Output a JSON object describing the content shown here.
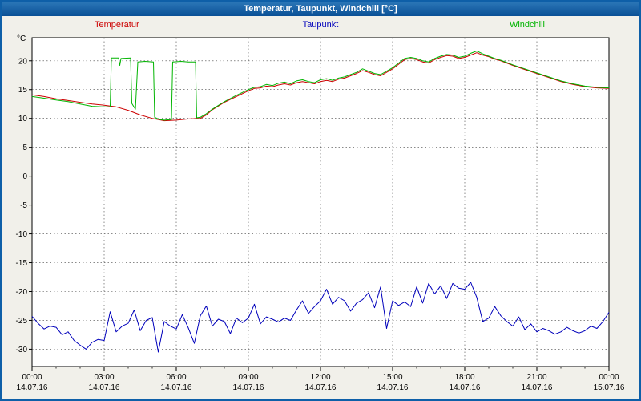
{
  "window": {
    "title": "Temperatur, Taupunkt, Windchill [°C]"
  },
  "chart_data": {
    "type": "line",
    "title": "Temperatur, Taupunkt, Windchill [°C]",
    "ylabel": "°C",
    "ylim": [
      -33,
      24
    ],
    "yticks": [
      20,
      15,
      10,
      5,
      0,
      -5,
      -10,
      -15,
      -20,
      -25,
      -30
    ],
    "xlim": [
      0,
      24
    ],
    "grid": "dashed",
    "legend_position": "top",
    "xticks": [
      {
        "hour": 0,
        "time": "00:00",
        "date": "14.07.16"
      },
      {
        "hour": 3,
        "time": "03:00",
        "date": "14.07.16"
      },
      {
        "hour": 6,
        "time": "06:00",
        "date": "14.07.16"
      },
      {
        "hour": 9,
        "time": "09:00",
        "date": "14.07.16"
      },
      {
        "hour": 12,
        "time": "12:00",
        "date": "14.07.16"
      },
      {
        "hour": 15,
        "time": "15:00",
        "date": "14.07.16"
      },
      {
        "hour": 18,
        "time": "18:00",
        "date": "14.07.16"
      },
      {
        "hour": 21,
        "time": "21:00",
        "date": "14.07.16"
      },
      {
        "hour": 24,
        "time": "00:00",
        "date": "15.07.16"
      }
    ],
    "series": [
      {
        "name": "Temperatur",
        "color": "#cc0000",
        "points": [
          [
            0,
            14.1
          ],
          [
            0.5,
            13.8
          ],
          [
            1,
            13.4
          ],
          [
            1.5,
            13.1
          ],
          [
            2,
            12.8
          ],
          [
            2.5,
            12.5
          ],
          [
            3,
            12.3
          ],
          [
            3.5,
            12.0
          ],
          [
            4,
            11.4
          ],
          [
            4.5,
            10.6
          ],
          [
            5,
            10.0
          ],
          [
            5.25,
            9.8
          ],
          [
            5.5,
            9.6
          ],
          [
            6,
            9.7
          ],
          [
            6.5,
            9.9
          ],
          [
            7,
            10.0
          ],
          [
            7.25,
            10.6
          ],
          [
            7.5,
            11.5
          ],
          [
            8,
            12.8
          ],
          [
            8.5,
            13.8
          ],
          [
            9,
            14.8
          ],
          [
            9.25,
            15.2
          ],
          [
            9.5,
            15.3
          ],
          [
            9.75,
            15.6
          ],
          [
            10,
            15.5
          ],
          [
            10.25,
            15.8
          ],
          [
            10.5,
            16.0
          ],
          [
            10.75,
            15.8
          ],
          [
            11,
            16.2
          ],
          [
            11.25,
            16.4
          ],
          [
            11.5,
            16.2
          ],
          [
            11.75,
            16.0
          ],
          [
            12,
            16.4
          ],
          [
            12.25,
            16.6
          ],
          [
            12.5,
            16.4
          ],
          [
            12.75,
            16.8
          ],
          [
            13,
            17.0
          ],
          [
            13.25,
            17.4
          ],
          [
            13.5,
            17.8
          ],
          [
            13.75,
            18.3
          ],
          [
            14,
            18.0
          ],
          [
            14.25,
            17.6
          ],
          [
            14.5,
            17.4
          ],
          [
            14.75,
            18.0
          ],
          [
            15,
            18.6
          ],
          [
            15.25,
            19.4
          ],
          [
            15.5,
            20.2
          ],
          [
            15.75,
            20.4
          ],
          [
            16,
            20.2
          ],
          [
            16.25,
            19.8
          ],
          [
            16.5,
            19.6
          ],
          [
            16.75,
            20.2
          ],
          [
            17,
            20.6
          ],
          [
            17.25,
            20.9
          ],
          [
            17.5,
            20.8
          ],
          [
            17.75,
            20.4
          ],
          [
            18,
            20.6
          ],
          [
            18.25,
            21.0
          ],
          [
            18.5,
            21.4
          ],
          [
            18.75,
            21.0
          ],
          [
            19,
            20.7
          ],
          [
            19.25,
            20.3
          ],
          [
            19.5,
            20.0
          ],
          [
            19.75,
            19.6
          ],
          [
            20,
            19.2
          ],
          [
            20.5,
            18.5
          ],
          [
            21,
            17.8
          ],
          [
            21.5,
            17.1
          ],
          [
            22,
            16.4
          ],
          [
            22.5,
            15.9
          ],
          [
            23,
            15.5
          ],
          [
            23.5,
            15.3
          ],
          [
            24,
            15.2
          ]
        ]
      },
      {
        "name": "Taupunkt",
        "color": "#0000bb",
        "points": [
          [
            0,
            -24.3
          ],
          [
            0.25,
            -25.5
          ],
          [
            0.5,
            -26.5
          ],
          [
            0.75,
            -26.0
          ],
          [
            1,
            -26.2
          ],
          [
            1.25,
            -27.5
          ],
          [
            1.5,
            -27.0
          ],
          [
            1.75,
            -28.5
          ],
          [
            2,
            -29.3
          ],
          [
            2.25,
            -30.0
          ],
          [
            2.5,
            -28.8
          ],
          [
            2.75,
            -28.3
          ],
          [
            3,
            -28.5
          ],
          [
            3.25,
            -23.5
          ],
          [
            3.5,
            -27.0
          ],
          [
            3.75,
            -26.0
          ],
          [
            4,
            -25.5
          ],
          [
            4.25,
            -23.2
          ],
          [
            4.5,
            -26.8
          ],
          [
            4.75,
            -25.0
          ],
          [
            5,
            -24.5
          ],
          [
            5.25,
            -30.5
          ],
          [
            5.5,
            -25.2
          ],
          [
            5.75,
            -26.0
          ],
          [
            6,
            -26.5
          ],
          [
            6.25,
            -24.0
          ],
          [
            6.5,
            -26.3
          ],
          [
            6.75,
            -29.0
          ],
          [
            7,
            -24.2
          ],
          [
            7.25,
            -22.5
          ],
          [
            7.5,
            -26.0
          ],
          [
            7.75,
            -24.8
          ],
          [
            8,
            -25.2
          ],
          [
            8.25,
            -27.3
          ],
          [
            8.5,
            -24.6
          ],
          [
            8.75,
            -25.4
          ],
          [
            9,
            -24.6
          ],
          [
            9.25,
            -22.2
          ],
          [
            9.5,
            -25.6
          ],
          [
            9.75,
            -24.4
          ],
          [
            10,
            -24.8
          ],
          [
            10.25,
            -25.3
          ],
          [
            10.5,
            -24.6
          ],
          [
            10.75,
            -25.0
          ],
          [
            11,
            -23.2
          ],
          [
            11.25,
            -21.6
          ],
          [
            11.5,
            -23.8
          ],
          [
            11.75,
            -22.6
          ],
          [
            12,
            -21.6
          ],
          [
            12.25,
            -19.6
          ],
          [
            12.5,
            -22.2
          ],
          [
            12.75,
            -21.0
          ],
          [
            13,
            -21.6
          ],
          [
            13.25,
            -23.4
          ],
          [
            13.5,
            -22.0
          ],
          [
            13.75,
            -21.4
          ],
          [
            14,
            -20.2
          ],
          [
            14.25,
            -22.8
          ],
          [
            14.5,
            -19.2
          ],
          [
            14.75,
            -26.4
          ],
          [
            15,
            -21.6
          ],
          [
            15.25,
            -22.4
          ],
          [
            15.5,
            -21.8
          ],
          [
            15.75,
            -22.6
          ],
          [
            16,
            -19.2
          ],
          [
            16.25,
            -22.0
          ],
          [
            16.5,
            -18.6
          ],
          [
            16.75,
            -20.4
          ],
          [
            17,
            -19.0
          ],
          [
            17.25,
            -21.2
          ],
          [
            17.5,
            -18.6
          ],
          [
            17.75,
            -19.4
          ],
          [
            18,
            -19.6
          ],
          [
            18.25,
            -18.4
          ],
          [
            18.5,
            -21.0
          ],
          [
            18.75,
            -25.2
          ],
          [
            19,
            -24.6
          ],
          [
            19.25,
            -22.6
          ],
          [
            19.5,
            -24.2
          ],
          [
            19.75,
            -25.2
          ],
          [
            20,
            -26.0
          ],
          [
            20.25,
            -24.4
          ],
          [
            20.5,
            -26.6
          ],
          [
            20.75,
            -25.6
          ],
          [
            21,
            -27.0
          ],
          [
            21.25,
            -26.4
          ],
          [
            21.5,
            -26.8
          ],
          [
            21.75,
            -27.4
          ],
          [
            22,
            -27.0
          ],
          [
            22.25,
            -26.2
          ],
          [
            22.5,
            -26.8
          ],
          [
            22.75,
            -27.2
          ],
          [
            23,
            -26.8
          ],
          [
            23.25,
            -26.0
          ],
          [
            23.5,
            -26.4
          ],
          [
            23.75,
            -25.2
          ],
          [
            24,
            -23.6
          ]
        ]
      },
      {
        "name": "Windchill",
        "color": "#00b400",
        "points": [
          [
            0,
            13.8
          ],
          [
            0.5,
            13.5
          ],
          [
            1,
            13.2
          ],
          [
            1.5,
            12.9
          ],
          [
            2,
            12.5
          ],
          [
            2.5,
            12.1
          ],
          [
            3,
            12.0
          ],
          [
            3.25,
            12.0
          ],
          [
            3.3,
            20.5
          ],
          [
            3.6,
            20.5
          ],
          [
            3.65,
            19.2
          ],
          [
            3.7,
            20.4
          ],
          [
            4.1,
            20.5
          ],
          [
            4.15,
            12.6
          ],
          [
            4.3,
            11.6
          ],
          [
            4.4,
            19.8
          ],
          [
            4.7,
            19.9
          ],
          [
            5.05,
            19.8
          ],
          [
            5.1,
            10.2
          ],
          [
            5.3,
            9.8
          ],
          [
            5.5,
            9.7
          ],
          [
            5.8,
            9.8
          ],
          [
            5.85,
            19.8
          ],
          [
            6.2,
            19.9
          ],
          [
            6.5,
            19.8
          ],
          [
            6.8,
            19.8
          ],
          [
            6.85,
            10.1
          ],
          [
            7,
            10.2
          ],
          [
            7.25,
            10.8
          ],
          [
            7.5,
            11.6
          ],
          [
            8,
            12.9
          ],
          [
            8.5,
            14.0
          ],
          [
            9,
            15.0
          ],
          [
            9.25,
            15.4
          ],
          [
            9.5,
            15.5
          ],
          [
            9.75,
            15.9
          ],
          [
            10,
            15.7
          ],
          [
            10.25,
            16.1
          ],
          [
            10.5,
            16.3
          ],
          [
            10.75,
            16.0
          ],
          [
            11,
            16.5
          ],
          [
            11.25,
            16.7
          ],
          [
            11.5,
            16.4
          ],
          [
            11.75,
            16.2
          ],
          [
            12,
            16.7
          ],
          [
            12.25,
            16.9
          ],
          [
            12.5,
            16.6
          ],
          [
            12.75,
            17.0
          ],
          [
            13,
            17.2
          ],
          [
            13.25,
            17.6
          ],
          [
            13.5,
            18.0
          ],
          [
            13.75,
            18.6
          ],
          [
            14,
            18.2
          ],
          [
            14.25,
            17.8
          ],
          [
            14.5,
            17.6
          ],
          [
            14.75,
            18.2
          ],
          [
            15,
            18.8
          ],
          [
            15.25,
            19.6
          ],
          [
            15.5,
            20.4
          ],
          [
            15.75,
            20.6
          ],
          [
            16,
            20.4
          ],
          [
            16.25,
            20.0
          ],
          [
            16.5,
            19.8
          ],
          [
            16.75,
            20.4
          ],
          [
            17,
            20.8
          ],
          [
            17.25,
            21.1
          ],
          [
            17.5,
            21.0
          ],
          [
            17.75,
            20.6
          ],
          [
            18,
            20.8
          ],
          [
            18.25,
            21.3
          ],
          [
            18.5,
            21.7
          ],
          [
            18.75,
            21.2
          ],
          [
            19,
            20.8
          ],
          [
            19.25,
            20.4
          ],
          [
            19.5,
            20.1
          ],
          [
            19.75,
            19.7
          ],
          [
            20,
            19.3
          ],
          [
            20.5,
            18.6
          ],
          [
            21,
            17.9
          ],
          [
            21.5,
            17.2
          ],
          [
            22,
            16.5
          ],
          [
            22.5,
            16.0
          ],
          [
            23,
            15.6
          ],
          [
            23.5,
            15.4
          ],
          [
            24,
            15.3
          ]
        ]
      }
    ]
  }
}
